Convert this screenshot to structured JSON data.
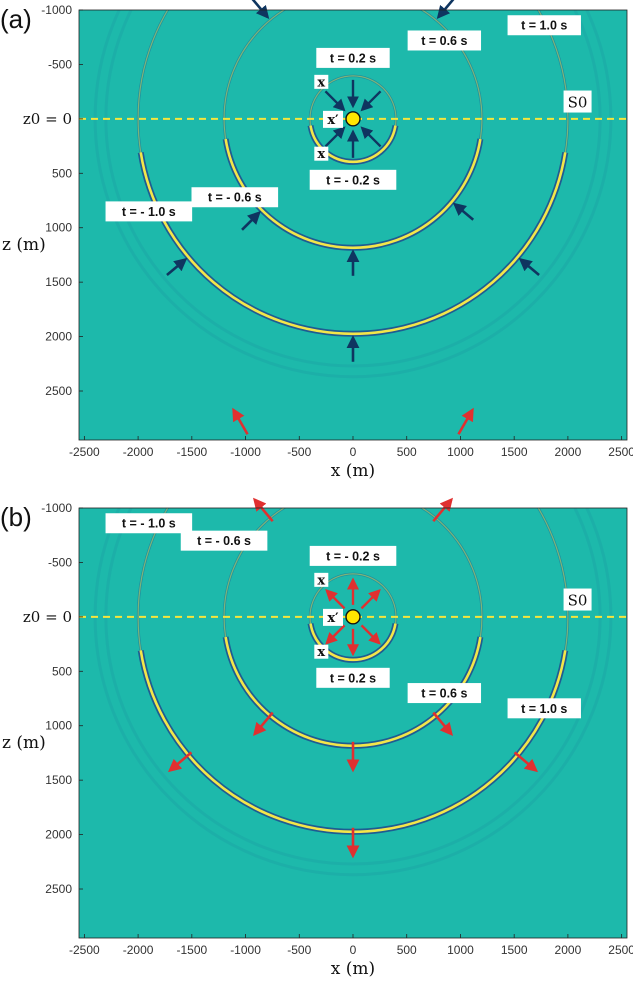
{
  "colors": {
    "background": "#1db9ab",
    "wavefront_bright": "#f3e64a",
    "wavefront_dark": "#1f3d8a",
    "reference_line": "#f5e63c",
    "focus_point": "#ffe600",
    "arrow_incoming": "#0f3560",
    "arrow_outgoing": "#e03030"
  },
  "axes": {
    "x_ticks": [
      "-2500",
      "-2000",
      "-1500",
      "-1000",
      "-500",
      "0",
      "500",
      "1000",
      "1500",
      "2000",
      "2500"
    ],
    "z_ticks": [
      "-1000",
      "-500",
      "0",
      "500",
      "1000",
      "1500",
      "2000",
      "2500"
    ],
    "x_title": "x (m)",
    "z_title": "z (m)",
    "z0_label": "z0 = 0",
    "surface_label": "S0",
    "xlim": [
      -2550,
      2550
    ],
    "zlim": [
      -1000,
      2950
    ]
  },
  "panels": [
    {
      "label": "(a)",
      "arrow_direction": "inward",
      "arrow_color_key": "arrow_incoming",
      "focus_label": "x′",
      "point_label": "x",
      "time_labels": [
        {
          "text": "t = 0.2 s",
          "x": 0,
          "z": -560
        },
        {
          "text": "t = - 0.2 s",
          "x": 0,
          "z": 560
        },
        {
          "text": "t = 0.6 s",
          "x": 850,
          "z": -720
        },
        {
          "text": "t = - 0.6 s",
          "x": -1100,
          "z": 720
        },
        {
          "text": "t = 1.0 s",
          "x": 1780,
          "z": -860
        },
        {
          "text": "t = - 1.0 s",
          "x": -1900,
          "z": 850
        }
      ]
    },
    {
      "label": "(b)",
      "arrow_direction": "outward",
      "arrow_color_key": "arrow_outgoing",
      "focus_label": "x′",
      "point_label": "x",
      "time_labels": [
        {
          "text": "t = - 1.0 s",
          "x": -1900,
          "z": -860
        },
        {
          "text": "t = - 0.6 s",
          "x": -1200,
          "z": -700
        },
        {
          "text": "t = - 0.2 s",
          "x": 0,
          "z": -560
        },
        {
          "text": "t = 0.2 s",
          "x": 0,
          "z": 560
        },
        {
          "text": "t = 0.6 s",
          "x": 850,
          "z": 700
        },
        {
          "text": "t = 1.0 s",
          "x": 1780,
          "z": 840
        }
      ]
    }
  ],
  "wavefronts": [
    {
      "time_s": 0.2,
      "radius_m": 400
    },
    {
      "time_s": 0.6,
      "radius_m": 1200
    },
    {
      "time_s": 1.0,
      "radius_m": 2000
    }
  ]
}
